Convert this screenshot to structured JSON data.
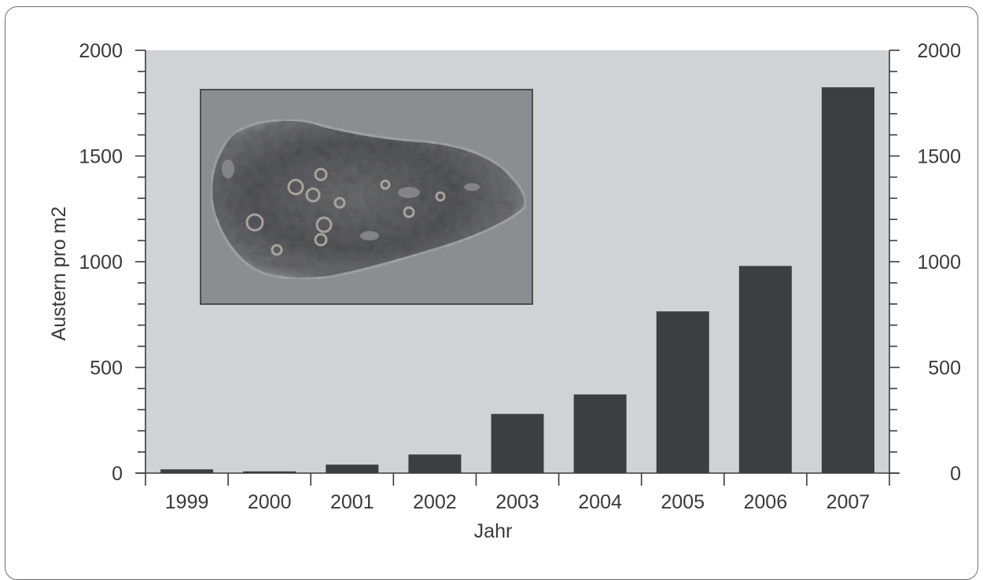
{
  "chart_data": {
    "type": "bar",
    "categories": [
      "1999",
      "2000",
      "2001",
      "2002",
      "2003",
      "2004",
      "2005",
      "2006",
      "2007"
    ],
    "values": [
      18,
      8,
      40,
      88,
      280,
      372,
      765,
      980,
      1825
    ],
    "title": "",
    "xlabel": "Jahr",
    "ylabel": "Austern pro m2",
    "ylim": [
      0,
      2000
    ],
    "y_ticks": [
      0,
      500,
      1000,
      1500,
      2000
    ],
    "y_tick_labels": [
      "0",
      "500",
      "1000",
      "1500",
      "2000"
    ],
    "y_minor_step": 100,
    "secondary_y_axis": true,
    "grid": false,
    "legend": "none",
    "plot_background": "#d1d2d4",
    "bar_color": "#3d3e41",
    "inset": {
      "kind": "photo",
      "subject": "oyster-shell-photo"
    }
  }
}
